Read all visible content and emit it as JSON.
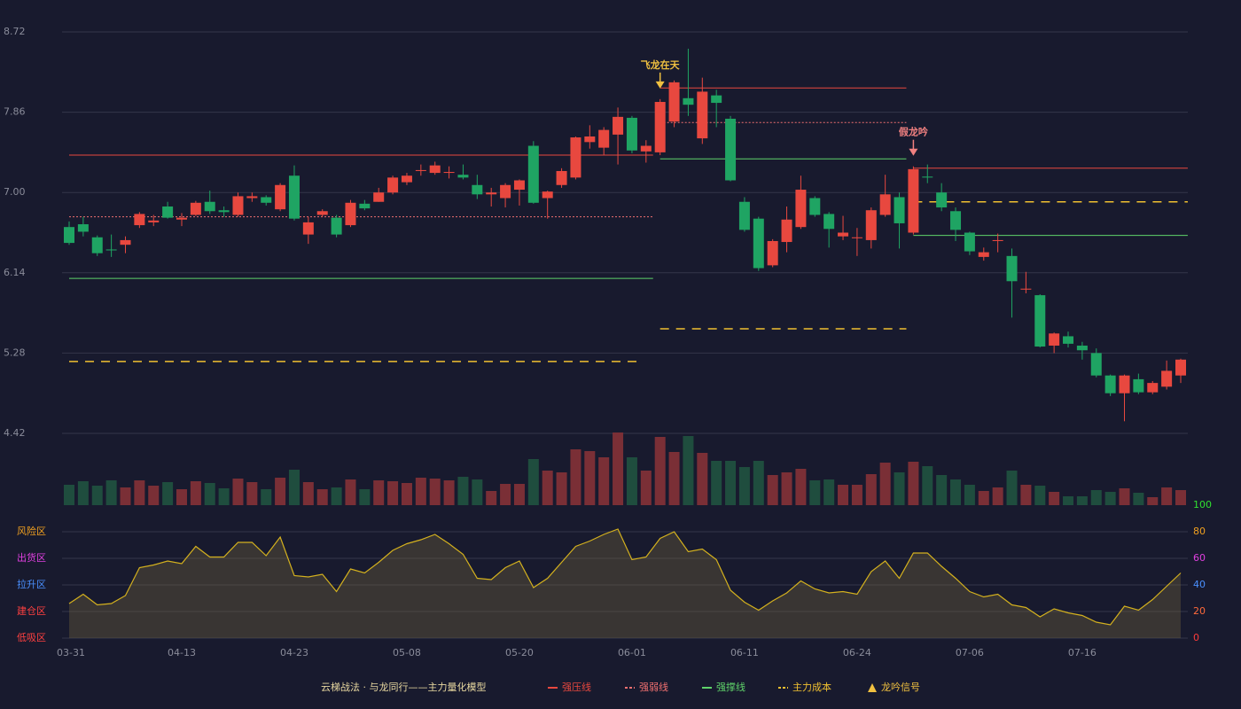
{
  "chart_data": {
    "type": "candlestick",
    "categories": [
      "03-31",
      null,
      null,
      null,
      null,
      null,
      null,
      null,
      "04-13",
      null,
      null,
      null,
      null,
      null,
      null,
      null,
      "04-23",
      null,
      null,
      null,
      null,
      null,
      null,
      null,
      "05-08",
      null,
      null,
      null,
      null,
      null,
      null,
      null,
      "05-20",
      null,
      null,
      null,
      null,
      null,
      null,
      null,
      "06-01",
      null,
      null,
      null,
      null,
      null,
      null,
      null,
      "06-11",
      null,
      null,
      null,
      null,
      null,
      null,
      null,
      "06-24",
      null,
      null,
      null,
      null,
      null,
      null,
      null,
      "07-06",
      null,
      null,
      null,
      null,
      null,
      null,
      null,
      "07-16",
      null,
      null,
      null,
      null,
      null,
      null,
      null
    ],
    "open": [
      6.63,
      6.66,
      6.52,
      6.39,
      6.44,
      6.65,
      6.68,
      6.85,
      6.71,
      6.76,
      6.9,
      6.81,
      6.76,
      6.94,
      6.95,
      6.82,
      7.18,
      6.55,
      6.76,
      6.73,
      6.65,
      6.88,
      6.9,
      7.0,
      7.11,
      7.23,
      7.21,
      7.21,
      7.19,
      7.08,
      6.98,
      6.94,
      7.03,
      7.5,
      6.94,
      7.08,
      7.16,
      7.54,
      7.48,
      7.62,
      7.8,
      7.44,
      7.43,
      7.76,
      8.01,
      7.58,
      8.04,
      7.79,
      6.9,
      6.72,
      6.22,
      6.47,
      6.63,
      6.94,
      6.77,
      6.53,
      6.51,
      6.49,
      6.76,
      6.95,
      6.57,
      7.17,
      7.0,
      6.8,
      6.57,
      6.31,
      6.48,
      6.32,
      5.96,
      5.9,
      5.36,
      5.46,
      5.36,
      5.28,
      5.04,
      4.85,
      5.0,
      4.86,
      4.92,
      5.04
    ],
    "close": [
      6.46,
      6.58,
      6.35,
      6.38,
      6.49,
      6.77,
      6.7,
      6.73,
      6.73,
      6.89,
      6.8,
      6.79,
      6.96,
      6.96,
      6.89,
      7.08,
      6.72,
      6.68,
      6.8,
      6.55,
      6.89,
      6.83,
      7.0,
      7.16,
      7.18,
      7.24,
      7.29,
      7.22,
      7.16,
      6.98,
      7.0,
      7.08,
      7.13,
      6.89,
      7.01,
      7.23,
      7.59,
      7.6,
      7.67,
      7.81,
      7.45,
      7.5,
      7.97,
      8.18,
      7.94,
      8.08,
      7.96,
      7.13,
      6.6,
      6.19,
      6.48,
      6.71,
      7.03,
      6.76,
      6.61,
      6.57,
      6.52,
      6.81,
      6.98,
      6.67,
      7.25,
      7.16,
      6.84,
      6.6,
      6.37,
      6.36,
      6.49,
      6.05,
      5.97,
      5.35,
      5.49,
      5.38,
      5.31,
      5.04,
      4.85,
      5.04,
      4.86,
      4.96,
      5.09,
      5.21
    ],
    "high": [
      6.69,
      6.74,
      6.54,
      6.55,
      6.53,
      6.79,
      6.76,
      6.9,
      6.78,
      6.91,
      7.02,
      6.85,
      7.0,
      7.0,
      6.97,
      7.1,
      7.29,
      6.74,
      6.82,
      6.76,
      6.92,
      6.92,
      7.05,
      7.18,
      7.21,
      7.3,
      7.33,
      7.28,
      7.3,
      7.19,
      7.05,
      7.1,
      7.14,
      7.55,
      7.02,
      7.26,
      7.6,
      7.72,
      7.7,
      7.91,
      7.82,
      7.56,
      8.0,
      8.2,
      8.54,
      8.23,
      8.1,
      7.82,
      6.95,
      6.74,
      6.5,
      6.85,
      7.18,
      6.96,
      6.79,
      6.75,
      6.62,
      6.84,
      7.19,
      7.0,
      7.28,
      7.3,
      7.1,
      6.84,
      6.58,
      6.41,
      6.56,
      6.4,
      6.15,
      5.91,
      5.5,
      5.51,
      5.4,
      5.33,
      5.05,
      5.05,
      5.06,
      4.98,
      5.2,
      5.22
    ],
    "low": [
      6.44,
      6.53,
      6.32,
      6.31,
      6.35,
      6.62,
      6.64,
      6.72,
      6.64,
      6.75,
      6.77,
      6.74,
      6.74,
      6.9,
      6.86,
      6.8,
      6.7,
      6.45,
      6.74,
      6.52,
      6.63,
      6.81,
      6.9,
      6.98,
      7.08,
      7.18,
      7.19,
      7.15,
      7.14,
      6.93,
      6.85,
      6.84,
      6.86,
      6.88,
      6.72,
      7.05,
      7.14,
      7.47,
      7.4,
      7.3,
      7.42,
      7.32,
      7.4,
      7.7,
      7.82,
      7.52,
      7.7,
      7.12,
      6.58,
      6.16,
      6.2,
      6.36,
      6.61,
      6.74,
      6.41,
      6.49,
      6.32,
      6.4,
      6.74,
      6.4,
      6.55,
      7.1,
      6.8,
      6.48,
      6.33,
      6.27,
      6.36,
      5.66,
      5.92,
      5.34,
      5.28,
      5.34,
      5.21,
      5.02,
      4.82,
      4.55,
      4.84,
      4.84,
      4.89,
      4.96
    ],
    "volume": [
      23,
      27,
      22,
      28,
      20,
      28,
      22,
      26,
      18,
      27,
      25,
      19,
      30,
      26,
      18,
      31,
      40,
      26,
      18,
      20,
      29,
      18,
      28,
      27,
      25,
      31,
      30,
      28,
      32,
      29,
      16,
      24,
      24,
      52,
      39,
      37,
      63,
      61,
      54,
      82,
      54,
      39,
      77,
      60,
      78,
      59,
      50,
      50,
      43,
      50,
      34,
      37,
      41,
      28,
      29,
      23,
      23,
      35,
      48,
      37,
      49,
      44,
      34,
      29,
      23,
      16,
      20,
      39,
      23,
      22,
      15,
      10,
      10,
      17,
      15,
      19,
      14,
      9,
      20,
      17
    ],
    "up_color": "#e8483f",
    "down_color": "#1fa463",
    "up_volume_color": "#7a2f36",
    "down_volume_color": "#1f4d3e",
    "ylim": [
      4.42,
      8.72
    ],
    "yticks": [
      {
        "value": 8.72,
        "label": "8.72"
      },
      {
        "value": 7.86,
        "label": "7.86"
      },
      {
        "value": 7.0,
        "label": "7.00"
      },
      {
        "value": 6.14,
        "label": "6.14"
      },
      {
        "value": 5.28,
        "label": "5.28"
      },
      {
        "value": 4.42,
        "label": "4.42"
      }
    ],
    "grid": true,
    "levels": [
      {
        "name": "强压线",
        "color": "#e8483f",
        "style": "solid",
        "segments": [
          {
            "start": 0,
            "end": 41,
            "value": 7.4
          },
          {
            "start": 42,
            "end": 59,
            "value": 8.12
          },
          {
            "start": 60,
            "end": 79,
            "value": 7.26
          }
        ]
      },
      {
        "name": "强弱线",
        "color": "#f07070",
        "style": "dotted",
        "segments": [
          {
            "start": 0,
            "end": 41,
            "value": 6.74
          },
          {
            "start": 42,
            "end": 59,
            "value": 7.75
          }
        ]
      },
      {
        "name": "强撑线",
        "color": "#5fd36a",
        "style": "solid",
        "segments": [
          {
            "start": 0,
            "end": 41,
            "value": 6.08
          },
          {
            "start": 42,
            "end": 59,
            "value": 7.36
          },
          {
            "start": 60,
            "end": 79,
            "value": 6.54
          }
        ]
      },
      {
        "name": "主力成本",
        "color": "#f0c030",
        "style": "dashed",
        "segments": [
          {
            "start": 0,
            "end": 40,
            "value": 5.19
          },
          {
            "start": 42,
            "end": 59,
            "value": 5.54
          },
          {
            "start": 60,
            "end": 79,
            "value": 6.9
          }
        ]
      }
    ],
    "signals": {
      "name": "龙吟信号",
      "color": "#f0c040",
      "items": [
        {
          "label": "飞龙在天",
          "index": 42,
          "color": "#f0c040"
        },
        {
          "label": "假龙吟",
          "index": 60,
          "color": "#f08080"
        }
      ]
    },
    "indicator": {
      "values": [
        26,
        33,
        25,
        26,
        32,
        53,
        55,
        58,
        56,
        69,
        61,
        61,
        72,
        72,
        62,
        76,
        47,
        46,
        48,
        35,
        52,
        49,
        57,
        66,
        71,
        74,
        78,
        71,
        63,
        45,
        44,
        53,
        58,
        38,
        45,
        57,
        69,
        73,
        78,
        82,
        59,
        61,
        75,
        80,
        65,
        67,
        59,
        36,
        27,
        21,
        28,
        34,
        43,
        37,
        34,
        35,
        33,
        50,
        58,
        45,
        64,
        64,
        54,
        45,
        35,
        31,
        33,
        25,
        23,
        16,
        22,
        19,
        17,
        12,
        10,
        24,
        21,
        29,
        39,
        49
      ],
      "color": "#d4b11e",
      "ylim": [
        0,
        100
      ],
      "yticks": [
        0,
        20,
        40,
        60,
        80,
        100
      ],
      "ytick_colors": [
        "#ff3b3b",
        "#ff6a3b",
        "#4a90ff",
        "#e040e0",
        "#f0a020",
        "#30e030"
      ],
      "zones": [
        {
          "label": "风险区",
          "value": 80,
          "color": "#f0a020"
        },
        {
          "label": "出货区",
          "value": 60,
          "color": "#e040e0"
        },
        {
          "label": "拉升区",
          "value": 40,
          "color": "#4a90ff"
        },
        {
          "label": "建仓区",
          "value": 20,
          "color": "#ff4040"
        },
        {
          "label": "低吸区",
          "value": 0,
          "color": "#ff4040"
        }
      ]
    },
    "legend_title": "云梯战法 · 与龙同行——主力量化模型"
  }
}
